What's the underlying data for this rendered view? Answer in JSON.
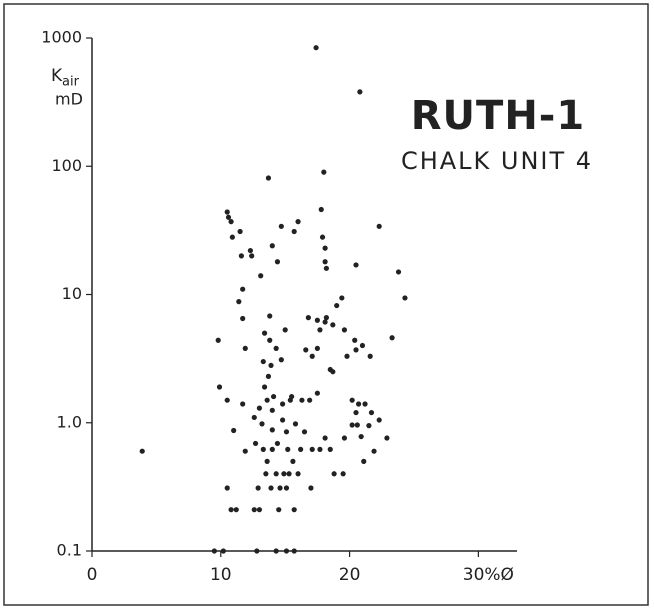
{
  "chart_data": {
    "type": "scatter",
    "title": "RUTH-1",
    "subtitle": "CHALK UNIT 4",
    "ylabel_symbol": "K",
    "ylabel_subscript": "air",
    "ylabel_unit": "mD",
    "ylog": true,
    "color": "#222222",
    "xlim": [
      0,
      33
    ],
    "ylim": [
      0.1,
      1000
    ],
    "xticks": [
      0,
      10,
      20,
      {
        "value": 30,
        "label": "30%Ø"
      }
    ],
    "yticks": [
      0.1,
      {
        "value": 1,
        "label": "1.0"
      },
      10,
      100,
      1000
    ],
    "x": [
      17.4,
      20.8,
      13.7,
      18.0,
      10.5,
      10.6,
      10.8,
      17.8,
      16.0,
      15.7,
      14.7,
      22.3,
      10.9,
      11.5,
      12.3,
      11.6,
      12.4,
      14.0,
      17.9,
      18.1,
      18.2,
      20.5,
      14.4,
      18.1,
      13.1,
      11.7,
      23.8,
      24.3,
      19.4,
      19.0,
      11.4,
      18.2,
      18.1,
      17.5,
      16.8,
      13.8,
      11.7,
      18.7,
      19.6,
      15.0,
      13.4,
      17.7,
      13.8,
      9.8,
      20.4,
      23.3,
      21.0,
      14.3,
      11.9,
      16.6,
      17.5,
      20.5,
      19.8,
      21.6,
      13.3,
      13.9,
      14.7,
      17.1,
      18.7,
      13.7,
      9.9,
      13.4,
      14.1,
      13.6,
      10.5,
      11.7,
      13.0,
      14.8,
      15.4,
      16.3,
      15.5,
      16.9,
      17.5,
      18.5,
      20.2,
      20.7,
      20.5,
      21.2,
      21.7,
      22.3,
      22.9,
      21.5,
      20.6,
      20.9,
      20.2,
      19.6,
      14.0,
      13.2,
      14.8,
      15.8,
      15.1,
      12.6,
      14.0,
      11.0,
      11.9,
      12.7,
      13.3,
      14.0,
      14.4,
      15.2,
      16.2,
      17.1,
      17.7,
      18.1,
      18.5,
      16.5,
      3.9,
      21.9,
      21.1,
      13.6,
      15.6,
      13.5,
      14.3,
      14.9,
      15.3,
      16.0,
      18.8,
      19.5,
      10.5,
      12.9,
      13.9,
      14.6,
      15.1,
      17.0,
      10.8,
      11.2,
      12.6,
      13.0,
      14.5,
      15.7,
      9.5,
      10.2,
      12.8,
      14.3,
      15.1,
      15.7
    ],
    "y": [
      840,
      380,
      81,
      90,
      44,
      40,
      37,
      46,
      37,
      31,
      34,
      34,
      28,
      31,
      22,
      20,
      20,
      24,
      28,
      18,
      16,
      17,
      18,
      23,
      14,
      11,
      15,
      9.4,
      9.4,
      8.2,
      8.8,
      6.6,
      6.1,
      6.3,
      6.6,
      6.8,
      6.5,
      5.8,
      5.3,
      5.3,
      5.0,
      5.3,
      4.4,
      4.4,
      4.4,
      4.6,
      4.0,
      3.8,
      3.8,
      3.7,
      3.8,
      3.7,
      3.3,
      3.3,
      3.0,
      2.8,
      3.1,
      3.3,
      2.5,
      2.3,
      1.9,
      1.9,
      1.6,
      1.5,
      1.5,
      1.4,
      1.3,
      1.4,
      1.5,
      1.5,
      1.6,
      1.5,
      1.7,
      2.6,
      1.5,
      1.4,
      1.2,
      1.4,
      1.2,
      1.05,
      0.76,
      0.95,
      0.96,
      0.78,
      0.96,
      0.76,
      1.25,
      0.98,
      1.05,
      0.98,
      0.85,
      1.1,
      0.88,
      0.87,
      0.6,
      0.69,
      0.62,
      0.62,
      0.69,
      0.62,
      0.62,
      0.62,
      0.62,
      0.76,
      0.62,
      0.85,
      0.6,
      0.6,
      0.5,
      0.5,
      0.5,
      0.4,
      0.4,
      0.4,
      0.4,
      0.4,
      0.4,
      0.4,
      0.31,
      0.31,
      0.31,
      0.31,
      0.31,
      0.31,
      0.21,
      0.21,
      0.21,
      0.21,
      0.21,
      0.21,
      0.1,
      0.1,
      0.1,
      0.1,
      0.1,
      0.1
    ]
  }
}
